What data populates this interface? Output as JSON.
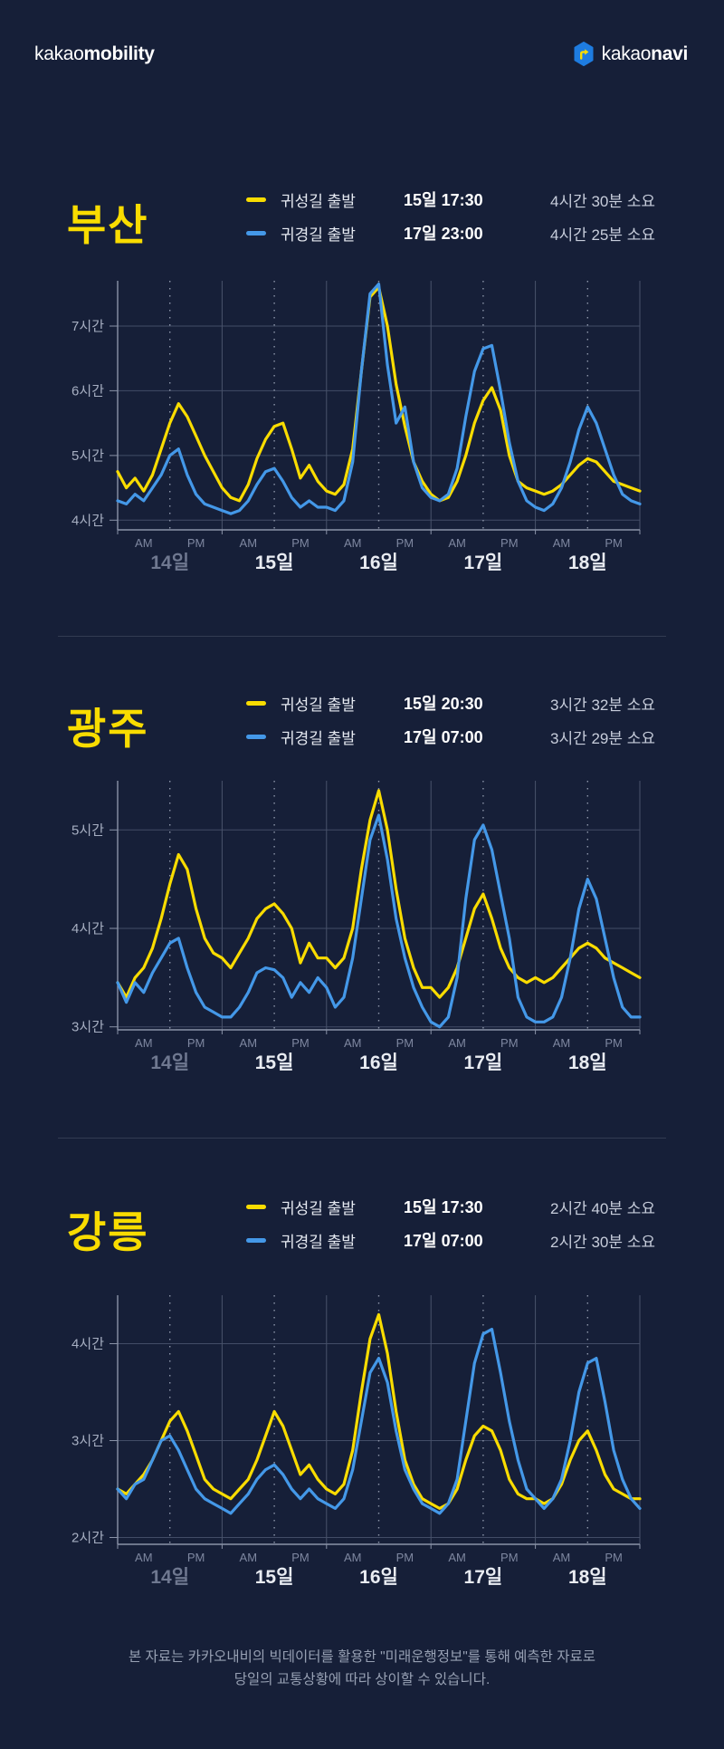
{
  "header": {
    "left_brand": {
      "prefix": "kakao",
      "suffix": "mobility"
    },
    "right_brand": {
      "prefix": "kakao",
      "suffix": "navi"
    }
  },
  "sections": [
    {
      "title": "부산",
      "legend": [
        {
          "label": "귀성길 출발",
          "datetime": "15일 17:30",
          "duration": "4시간 30분 소요"
        },
        {
          "label": "귀경길 출발",
          "datetime": "17일 23:00",
          "duration": "4시간 25분 소요"
        }
      ]
    },
    {
      "title": "광주",
      "legend": [
        {
          "label": "귀성길 출발",
          "datetime": "15일 20:30",
          "duration": "3시간 32분 소요"
        },
        {
          "label": "귀경길 출발",
          "datetime": "17일 07:00",
          "duration": "3시간 29분 소요"
        }
      ]
    },
    {
      "title": "강릉",
      "legend": [
        {
          "label": "귀성길 출발",
          "datetime": "15일 17:30",
          "duration": "2시간 40분 소요"
        },
        {
          "label": "귀경길 출발",
          "datetime": "17일 07:00",
          "duration": "2시간 30분 소요"
        }
      ]
    }
  ],
  "footer": {
    "line1": "본 자료는 카카오내비의 빅데이터를 활용한 \"미래운행정보\"를 통해 예측한 자료로",
    "line2": "당일의 교통상황에 따라 상이할 수 있습니다."
  },
  "colors": {
    "background": "#161F38",
    "outbound_line": "#F9DC00",
    "return_line": "#4498E8",
    "grid": "#424C66",
    "axis": "#8A93A8",
    "day_line": "#49536B",
    "noon_dash": "#8C95A9",
    "tick_label": "#A7AFC2",
    "ampm_label": "#7E87A0",
    "date_label": "#E9ECF2",
    "date_label_dim": "#6F7890",
    "navi_icon_blue": "#1E7CE0",
    "kakao_yellow": "#F9DC00"
  },
  "chart_data": [
    {
      "type": "line",
      "title": "부산 예상 소요시간",
      "x_days": [
        "14일",
        "15일",
        "16일",
        "17일",
        "18일"
      ],
      "half_day_labels": [
        "AM",
        "PM"
      ],
      "x_hours_step": 2,
      "x_total_hours": 120,
      "ylim": [
        3.85,
        7.7
      ],
      "yticks": [
        {
          "v": 4,
          "label": "4시간"
        },
        {
          "v": 5,
          "label": "5시간"
        },
        {
          "v": 6,
          "label": "6시간"
        },
        {
          "v": 7,
          "label": "7시간"
        }
      ],
      "series": [
        {
          "name": "귀성길 출발",
          "color": "#F9DC00",
          "values": [
            4.75,
            4.5,
            4.65,
            4.45,
            4.7,
            5.1,
            5.5,
            5.8,
            5.6,
            5.3,
            5.0,
            4.75,
            4.5,
            4.35,
            4.3,
            4.55,
            4.95,
            5.25,
            5.45,
            5.5,
            5.1,
            4.65,
            4.85,
            4.6,
            4.45,
            4.4,
            4.55,
            5.1,
            6.3,
            7.45,
            7.6,
            7.0,
            6.1,
            5.45,
            4.9,
            4.6,
            4.4,
            4.3,
            4.35,
            4.6,
            5.0,
            5.5,
            5.85,
            6.05,
            5.7,
            5.0,
            4.6,
            4.5,
            4.45,
            4.4,
            4.45,
            4.55,
            4.7,
            4.85,
            4.95,
            4.9,
            4.75,
            4.6,
            4.55,
            4.5,
            4.45
          ]
        },
        {
          "name": "귀경길 출발",
          "color": "#4498E8",
          "values": [
            4.3,
            4.25,
            4.4,
            4.3,
            4.5,
            4.7,
            5.0,
            5.1,
            4.7,
            4.4,
            4.25,
            4.2,
            4.15,
            4.1,
            4.15,
            4.3,
            4.55,
            4.75,
            4.8,
            4.6,
            4.35,
            4.2,
            4.3,
            4.2,
            4.2,
            4.15,
            4.3,
            4.9,
            6.3,
            7.5,
            7.65,
            6.4,
            5.5,
            5.75,
            4.9,
            4.5,
            4.35,
            4.3,
            4.4,
            4.8,
            5.6,
            6.3,
            6.65,
            6.7,
            6.0,
            5.2,
            4.6,
            4.3,
            4.2,
            4.15,
            4.25,
            4.5,
            4.9,
            5.4,
            5.75,
            5.5,
            5.1,
            4.7,
            4.4,
            4.3,
            4.25
          ]
        }
      ]
    },
    {
      "type": "line",
      "title": "광주 예상 소요시간",
      "x_days": [
        "14일",
        "15일",
        "16일",
        "17일",
        "18일"
      ],
      "half_day_labels": [
        "AM",
        "PM"
      ],
      "x_hours_step": 2,
      "x_total_hours": 120,
      "ylim": [
        2.97,
        5.5
      ],
      "yticks": [
        {
          "v": 3,
          "label": "3시간"
        },
        {
          "v": 4,
          "label": "4시간"
        },
        {
          "v": 5,
          "label": "5시간"
        }
      ],
      "series": [
        {
          "name": "귀성길 출발",
          "color": "#F9DC00",
          "values": [
            3.45,
            3.3,
            3.5,
            3.6,
            3.8,
            4.1,
            4.45,
            4.75,
            4.6,
            4.2,
            3.9,
            3.75,
            3.7,
            3.6,
            3.75,
            3.9,
            4.1,
            4.2,
            4.25,
            4.15,
            4.0,
            3.65,
            3.85,
            3.7,
            3.7,
            3.6,
            3.7,
            4.0,
            4.6,
            5.1,
            5.4,
            5.0,
            4.4,
            3.9,
            3.6,
            3.4,
            3.4,
            3.3,
            3.4,
            3.6,
            3.9,
            4.2,
            4.35,
            4.1,
            3.8,
            3.6,
            3.5,
            3.45,
            3.5,
            3.45,
            3.5,
            3.6,
            3.7,
            3.8,
            3.85,
            3.8,
            3.7,
            3.65,
            3.6,
            3.55,
            3.5
          ]
        },
        {
          "name": "귀경길 출발",
          "color": "#4498E8",
          "values": [
            3.45,
            3.25,
            3.45,
            3.35,
            3.55,
            3.7,
            3.85,
            3.9,
            3.6,
            3.35,
            3.2,
            3.15,
            3.1,
            3.1,
            3.2,
            3.35,
            3.55,
            3.6,
            3.58,
            3.5,
            3.3,
            3.45,
            3.35,
            3.5,
            3.4,
            3.2,
            3.3,
            3.7,
            4.3,
            4.9,
            5.15,
            4.7,
            4.1,
            3.7,
            3.4,
            3.2,
            3.05,
            3.0,
            3.1,
            3.5,
            4.3,
            4.9,
            5.05,
            4.8,
            4.35,
            3.9,
            3.3,
            3.1,
            3.05,
            3.05,
            3.1,
            3.3,
            3.7,
            4.2,
            4.5,
            4.3,
            3.9,
            3.5,
            3.2,
            3.1,
            3.1
          ]
        }
      ]
    },
    {
      "type": "line",
      "title": "강릉 예상 소요시간",
      "x_days": [
        "14일",
        "15일",
        "16일",
        "17일",
        "18일"
      ],
      "half_day_labels": [
        "AM",
        "PM"
      ],
      "x_hours_step": 2,
      "x_total_hours": 120,
      "ylim": [
        1.93,
        4.5
      ],
      "yticks": [
        {
          "v": 2,
          "label": "2시간"
        },
        {
          "v": 3,
          "label": "3시간"
        },
        {
          "v": 4,
          "label": "4시간"
        }
      ],
      "series": [
        {
          "name": "귀성길 출발",
          "color": "#F9DC00",
          "values": [
            2.5,
            2.45,
            2.55,
            2.65,
            2.8,
            3.0,
            3.2,
            3.3,
            3.1,
            2.85,
            2.6,
            2.5,
            2.45,
            2.4,
            2.5,
            2.6,
            2.8,
            3.05,
            3.3,
            3.15,
            2.9,
            2.65,
            2.75,
            2.6,
            2.5,
            2.45,
            2.55,
            2.9,
            3.5,
            4.05,
            4.3,
            3.9,
            3.3,
            2.8,
            2.55,
            2.4,
            2.35,
            2.3,
            2.35,
            2.5,
            2.8,
            3.05,
            3.15,
            3.1,
            2.9,
            2.6,
            2.45,
            2.4,
            2.4,
            2.35,
            2.4,
            2.55,
            2.8,
            3.0,
            3.1,
            2.9,
            2.65,
            2.5,
            2.45,
            2.4,
            2.4
          ]
        },
        {
          "name": "귀경길 출발",
          "color": "#4498E8",
          "values": [
            2.5,
            2.4,
            2.55,
            2.6,
            2.8,
            3.0,
            3.05,
            2.9,
            2.7,
            2.5,
            2.4,
            2.35,
            2.3,
            2.25,
            2.35,
            2.45,
            2.6,
            2.7,
            2.75,
            2.65,
            2.5,
            2.4,
            2.5,
            2.4,
            2.35,
            2.3,
            2.4,
            2.7,
            3.2,
            3.7,
            3.85,
            3.6,
            3.1,
            2.7,
            2.5,
            2.35,
            2.3,
            2.25,
            2.35,
            2.6,
            3.2,
            3.8,
            4.1,
            4.15,
            3.7,
            3.2,
            2.8,
            2.5,
            2.4,
            2.3,
            2.4,
            2.6,
            3.0,
            3.5,
            3.8,
            3.85,
            3.4,
            2.9,
            2.6,
            2.4,
            2.3
          ]
        }
      ]
    }
  ]
}
